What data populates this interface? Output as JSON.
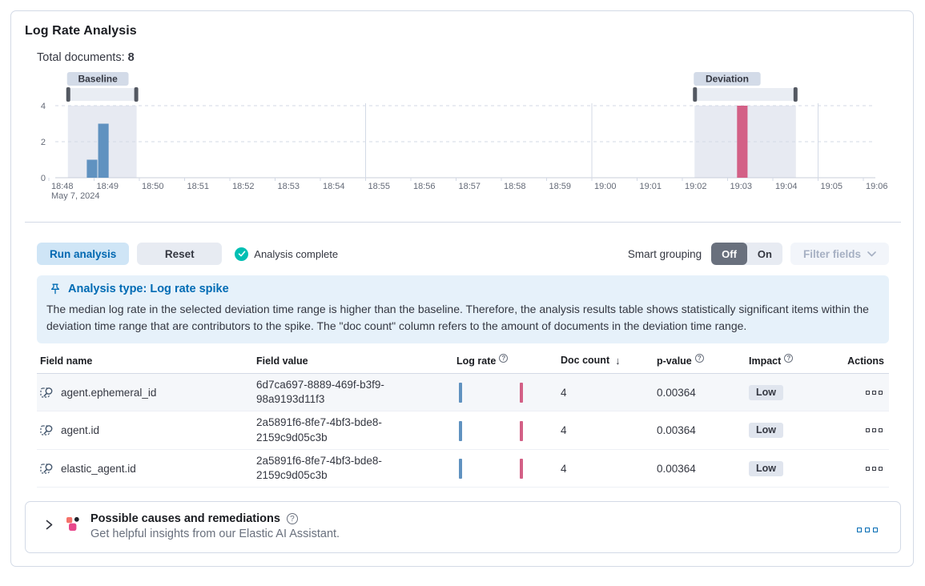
{
  "header": {
    "title": "Log Rate Analysis",
    "total_documents_label": "Total documents:",
    "total_documents_value": "8"
  },
  "chart_data": {
    "type": "bar",
    "x_date_label": "May 7, 2024",
    "x_ticks": [
      "18:48",
      "18:49",
      "18:50",
      "18:51",
      "18:52",
      "18:53",
      "18:54",
      "18:55",
      "18:56",
      "18:57",
      "18:58",
      "18:59",
      "19:00",
      "19:01",
      "19:02",
      "19:03",
      "19:04",
      "19:05",
      "19:06"
    ],
    "y_ticks": [
      0,
      2,
      4
    ],
    "ylim": [
      0,
      4
    ],
    "major_gridlines_min": [
      7,
      12,
      17
    ],
    "series": [
      {
        "name": "baseline",
        "color": "#6092C0",
        "bars": [
          {
            "start_min": 0.83,
            "end_min": 1.08,
            "value": 1
          },
          {
            "start_min": 1.08,
            "end_min": 1.33,
            "value": 3
          }
        ]
      },
      {
        "name": "deviation",
        "color": "#D36086",
        "bars": [
          {
            "start_min": 15.2,
            "end_min": 15.45,
            "value": 4
          }
        ]
      }
    ],
    "windows": [
      {
        "label": "Baseline",
        "start_min": 0.42,
        "end_min": 1.94
      },
      {
        "label": "Deviation",
        "start_min": 14.27,
        "end_min": 16.51
      }
    ]
  },
  "toolbar": {
    "run_analysis": "Run analysis",
    "reset": "Reset",
    "status": "Analysis complete",
    "smart_grouping_label": "Smart grouping",
    "off": "Off",
    "on": "On",
    "filter_fields": "Filter fields"
  },
  "callout": {
    "title": "Analysis type: Log rate spike",
    "body": "The median log rate in the selected deviation time range is higher than the baseline. Therefore, the analysis results table shows statistically significant items within the deviation time range that are contributors to the spike. The \"doc count\" column refers to the amount of documents in the deviation time range."
  },
  "table": {
    "headers": {
      "field_name": "Field name",
      "field_value": "Field value",
      "log_rate": "Log rate",
      "doc_count": "Doc count",
      "sort_arrow": "↓",
      "p_value": "p-value",
      "impact": "Impact",
      "actions": "Actions"
    },
    "rows": [
      {
        "field_name": "agent.ephemeral_id",
        "field_value": "6d7ca697-8889-469f-b3f9-98a9193d11f3",
        "doc_count": "4",
        "p_value": "0.00364",
        "impact": "Low"
      },
      {
        "field_name": "agent.id",
        "field_value": "2a5891f6-8fe7-4bf3-bde8-2159c9d05c3b",
        "doc_count": "4",
        "p_value": "0.00364",
        "impact": "Low"
      },
      {
        "field_name": "elastic_agent.id",
        "field_value": "2a5891f6-8fe7-4bf3-bde8-2159c9d05c3b",
        "doc_count": "4",
        "p_value": "0.00364",
        "impact": "Low"
      }
    ]
  },
  "footer": {
    "title": "Possible causes and remediations",
    "subtitle": "Get helpful insights from our Elastic AI Assistant."
  },
  "colors": {
    "baseline_bar": "#6092C0",
    "deviation_bar": "#D36086",
    "success": "#00BFB3",
    "primary": "#006BB4",
    "window_shade": "#E7EAF2",
    "brush_track": "#E9EDF3",
    "brush_handle": "#535861",
    "badge_bg": "#D3DBE8",
    "gridline": "#D3DAE6"
  }
}
